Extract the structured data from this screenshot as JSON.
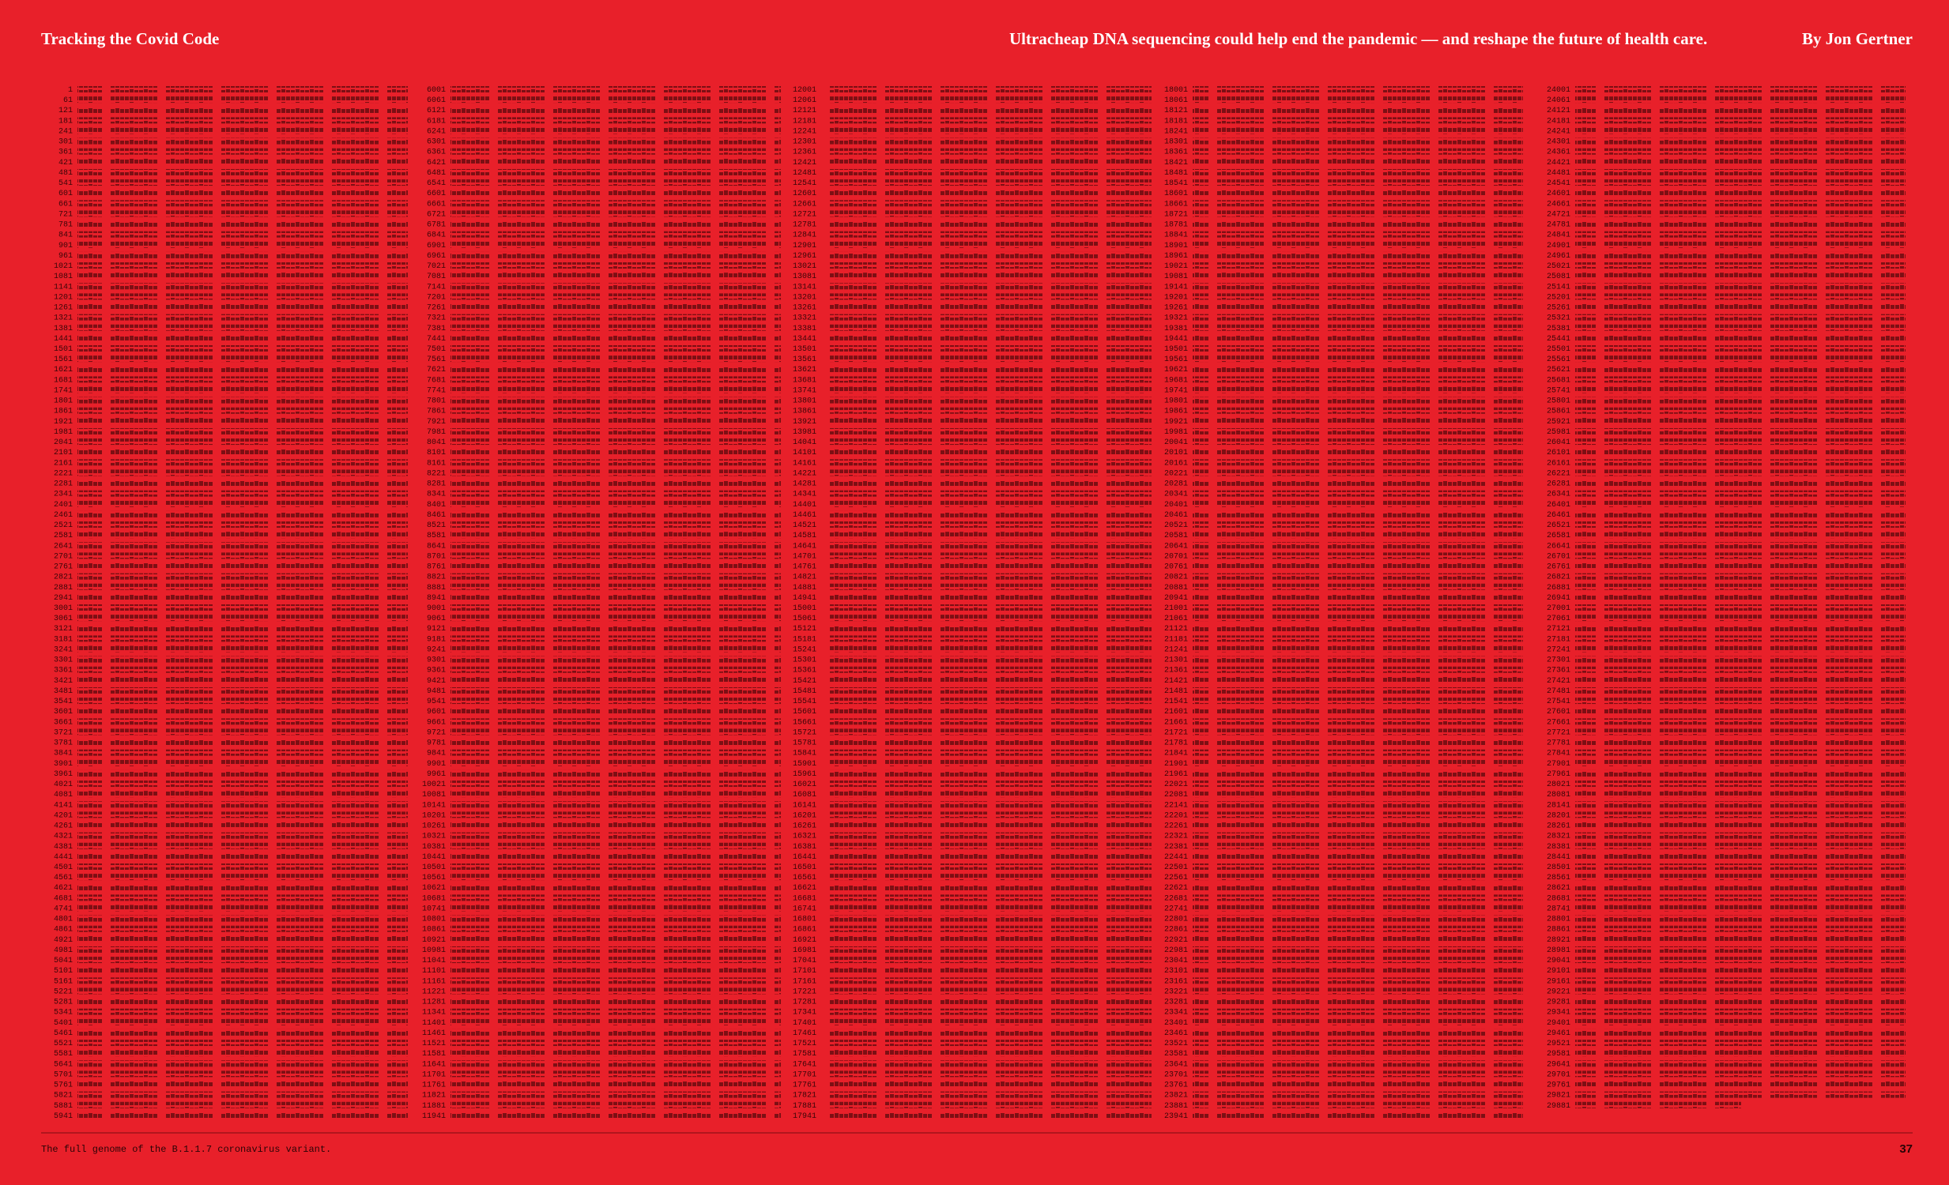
{
  "header": {
    "title": "Tracking the Covid Code",
    "subtitle": "Ultracheap DNA sequencing could help end the pandemic — and reshape the future of health care.",
    "byline": "By Jon Gertner"
  },
  "genome": {
    "columns": [
      [
        1,
        61,
        121,
        181,
        241,
        301,
        361,
        421,
        481,
        541,
        601,
        661,
        721,
        781,
        841,
        901,
        961,
        1021,
        1081,
        1141,
        1201,
        1261,
        1321,
        1381,
        1441,
        1501,
        1561,
        1621,
        1681,
        1741,
        1801,
        1861,
        1921,
        1981,
        2041,
        2101,
        2161,
        2221,
        2281,
        2341,
        2401,
        2461,
        2521,
        2581,
        2641,
        2701,
        2761,
        2821,
        2881,
        2941,
        3001,
        3061,
        3121,
        3181,
        3241,
        3301,
        3361,
        3421,
        3481,
        3541,
        3601,
        3661,
        3721,
        3781,
        3841,
        3901,
        3961,
        4021,
        4081,
        4141,
        4201,
        4261,
        4321,
        4381,
        4441,
        4501,
        4561,
        4621,
        4681,
        4741,
        4801,
        4861,
        4921,
        4981,
        5041,
        5101,
        5161,
        5221,
        5281,
        5341,
        5401,
        5461,
        5521,
        5581,
        5641,
        5701,
        5761,
        5821,
        5881,
        5941
      ],
      [
        6001,
        6061,
        6121,
        6181,
        6241,
        6301,
        6361,
        6421,
        6481,
        6541,
        6601,
        6661,
        6721,
        6781,
        6841,
        6901,
        6961,
        7021,
        7081,
        7141,
        7201,
        7261,
        7321,
        7381,
        7441,
        7501,
        7561,
        7621,
        7681,
        7741,
        7801,
        7861,
        7921,
        7981,
        8041,
        8101,
        8161,
        8221,
        8281,
        8341,
        8401,
        8461,
        8521,
        8581,
        8641,
        8701,
        8761,
        8821,
        8881,
        8941,
        9001,
        9061,
        9121,
        9181,
        9241,
        9301,
        9361,
        9421,
        9481,
        9541,
        9601,
        9661,
        9721,
        9781,
        9841,
        9901,
        9961,
        10021,
        10081,
        10141,
        10201,
        10261,
        10321,
        10381,
        10441,
        10501,
        10561,
        10621,
        10681,
        10741,
        10801,
        10861,
        10921,
        10981,
        11041,
        11101,
        11161,
        11221,
        11281,
        11341,
        11401,
        11461,
        11521,
        11581,
        11641,
        11701,
        11761,
        11821,
        11881,
        11941
      ],
      [
        12001,
        12061,
        12121,
        12181,
        12241,
        12301,
        12361,
        12421,
        12481,
        12541,
        12601,
        12661,
        12721,
        12781,
        12841,
        12901,
        12961,
        13021,
        13081,
        13141,
        13201,
        13261,
        13321,
        13381,
        13441,
        13501,
        13561,
        13621,
        13681,
        13741,
        13801,
        13861,
        13921,
        13981,
        14041,
        14101,
        14161,
        14221,
        14281,
        14341,
        14401,
        14461,
        14521,
        14581,
        14641,
        14701,
        14761,
        14821,
        14881,
        14941,
        15001,
        15061,
        15121,
        15181,
        15241,
        15301,
        15361,
        15421,
        15481,
        15541,
        15601,
        15661,
        15721,
        15781,
        15841,
        15901,
        15961,
        16021,
        16081,
        16141,
        16201,
        16261,
        16321,
        16381,
        16441,
        16501,
        16561,
        16621,
        16681,
        16741,
        16801,
        16861,
        16921,
        16981,
        17041,
        17101,
        17161,
        17221,
        17281,
        17341,
        17401,
        17461,
        17521,
        17581,
        17641,
        17701,
        17761,
        17821,
        17881,
        17941
      ],
      [
        18001,
        18061,
        18121,
        18181,
        18241,
        18301,
        18361,
        18421,
        18481,
        18541,
        18601,
        18661,
        18721,
        18781,
        18841,
        18901,
        18961,
        19021,
        19081,
        19141,
        19201,
        19261,
        19321,
        19381,
        19441,
        19501,
        19561,
        19621,
        19681,
        19741,
        19801,
        19861,
        19921,
        19981,
        20041,
        20101,
        20161,
        20221,
        20281,
        20341,
        20401,
        20461,
        20521,
        20581,
        20641,
        20701,
        20761,
        20821,
        20881,
        20941,
        21001,
        21061,
        21121,
        21181,
        21241,
        21301,
        21361,
        21421,
        21481,
        21541,
        21601,
        21661,
        21721,
        21781,
        21841,
        21901,
        21961,
        22021,
        22081,
        22141,
        22201,
        22261,
        22321,
        22381,
        22441,
        22501,
        22561,
        22621,
        22681,
        22741,
        22801,
        22861,
        22921,
        22981,
        23041,
        23101,
        23161,
        23221,
        23281,
        23341,
        23401,
        23461,
        23521,
        23581,
        23641,
        23701,
        23761,
        23821,
        23881,
        23941
      ],
      [
        24001,
        24061,
        24121,
        24181,
        24241,
        24301,
        24361,
        24421,
        24481,
        24541,
        24601,
        24661,
        24721,
        24781,
        24841,
        24901,
        24961,
        25021,
        25081,
        25141,
        25201,
        25261,
        25321,
        25381,
        25441,
        25501,
        25561,
        25621,
        25681,
        25741,
        25801,
        25861,
        25921,
        25981,
        26041,
        26101,
        26161,
        26221,
        26281,
        26341,
        26401,
        26461,
        26521,
        26581,
        26641,
        26701,
        26761,
        26821,
        26881,
        26941,
        27001,
        27061,
        27121,
        27181,
        27241,
        27301,
        27361,
        27421,
        27481,
        27541,
        27601,
        27661,
        27721,
        27781,
        27841,
        27901,
        27961,
        28021,
        28081,
        28141,
        28201,
        28261,
        28321,
        28381,
        28441,
        28501,
        28561,
        28621,
        28681,
        28741,
        28801,
        28861,
        28921,
        28981,
        29041,
        29101,
        29161,
        29221,
        29281,
        29341,
        29401,
        29461,
        29521,
        29581,
        29641,
        29701,
        29761,
        29821,
        29881
      ]
    ]
  },
  "footer": {
    "caption": "The full genome of the B.1.1.7 coronavirus variant.",
    "page_number": "37"
  }
}
